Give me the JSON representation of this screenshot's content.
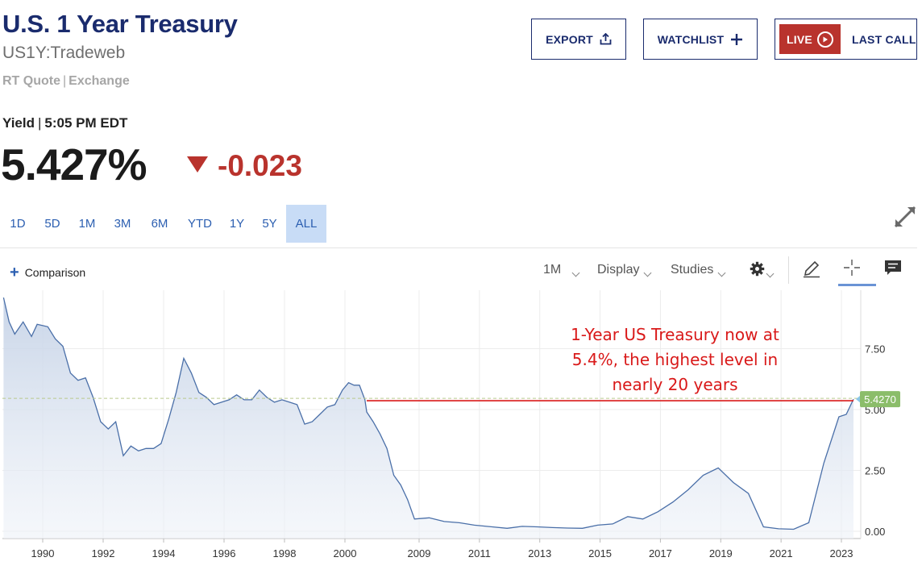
{
  "header": {
    "title": "U.S. 1 Year Treasury",
    "symbol": "US1Y:Tradeweb",
    "quote_type": "RT Quote",
    "quote_exchange": "Exchange"
  },
  "actions": {
    "export_label": "EXPORT",
    "watchlist_label": "WATCHLIST",
    "live_label": "LIVE",
    "last_call_label": "LAST CALL"
  },
  "quote": {
    "label": "Yield",
    "time": "5:05 PM EDT",
    "value": "5.427%",
    "change": "-0.023",
    "change_color": "#b9332d"
  },
  "ranges": [
    {
      "label": "1D",
      "active": false
    },
    {
      "label": "5D",
      "active": false
    },
    {
      "label": "1M",
      "active": false
    },
    {
      "label": "3M",
      "active": false
    },
    {
      "label": "6M",
      "active": false
    },
    {
      "label": "YTD",
      "active": false
    },
    {
      "label": "1Y",
      "active": false
    },
    {
      "label": "5Y",
      "active": false
    },
    {
      "label": "ALL",
      "active": true
    }
  ],
  "toolbar": {
    "comparison_label": "Comparison",
    "interval_label": "1M",
    "display_label": "Display",
    "studies_label": "Studies"
  },
  "annotation": {
    "line1": "1-Year US Treasury now at",
    "line2": "5.4%, the highest level in",
    "line3": "nearly 20 years"
  },
  "chart_data": {
    "type": "area",
    "series": [
      {
        "x": [
          "1988-11",
          "1989-01",
          "1989-03",
          "1989-06",
          "1989-09",
          "1989-11",
          "1990-03",
          "1990-06",
          "1990-09",
          "1990-12",
          "1991-03",
          "1991-06",
          "1991-09",
          "1991-12",
          "1992-03",
          "1992-06",
          "1992-09",
          "1992-12",
          "1993-03",
          "1993-06",
          "1993-09",
          "1993-12",
          "1994-03",
          "1994-06",
          "1994-09",
          "1994-12",
          "1995-03",
          "1995-06",
          "1995-09",
          "1995-12",
          "1996-03",
          "1996-06",
          "1996-09",
          "1996-12",
          "1997-03",
          "1997-06",
          "1997-09",
          "1997-12",
          "1998-03",
          "1998-06",
          "1998-09",
          "1998-12",
          "1999-03",
          "1999-06",
          "1999-09",
          "1999-12",
          "2000-03",
          "2000-06",
          "2000-09",
          "2000-12",
          "2007-02",
          "2007-05",
          "2007-08",
          "2007-11",
          "2008-02",
          "2008-05",
          "2008-08",
          "2008-11",
          "2009-05",
          "2009-11",
          "2010-05",
          "2010-11",
          "2011-06",
          "2011-12",
          "2012-06",
          "2012-12",
          "2013-06",
          "2013-12",
          "2014-06",
          "2014-12",
          "2015-06",
          "2015-12",
          "2016-06",
          "2016-12",
          "2017-06",
          "2017-12",
          "2018-06",
          "2018-12",
          "2019-06",
          "2019-12",
          "2020-06",
          "2020-12",
          "2021-06",
          "2021-12",
          "2022-06",
          "2022-12",
          "2023-03",
          "2023-06"
        ],
        "y": [
          9.6,
          8.6,
          8.1,
          8.6,
          8.0,
          8.5,
          8.4,
          7.9,
          7.6,
          6.5,
          6.2,
          6.3,
          5.5,
          4.5,
          4.2,
          4.5,
          3.1,
          3.5,
          3.3,
          3.4,
          3.4,
          3.6,
          4.6,
          5.7,
          7.1,
          6.5,
          5.7,
          5.5,
          5.2,
          5.3,
          5.4,
          5.6,
          5.4,
          5.4,
          5.8,
          5.5,
          5.3,
          5.4,
          5.3,
          5.2,
          4.4,
          4.5,
          4.8,
          5.1,
          5.2,
          5.8,
          6.1,
          6.0,
          6.0,
          5.4,
          4.9,
          4.5,
          4.0,
          3.4,
          2.3,
          1.9,
          1.3,
          0.5,
          0.55,
          0.4,
          0.35,
          0.25,
          0.18,
          0.12,
          0.2,
          0.18,
          0.15,
          0.13,
          0.12,
          0.25,
          0.3,
          0.6,
          0.5,
          0.8,
          1.2,
          1.7,
          2.3,
          2.6,
          2.0,
          1.55,
          0.18,
          0.1,
          0.08,
          0.35,
          2.8,
          4.7,
          4.8,
          5.427
        ]
      }
    ],
    "x_ticks": [
      "1990",
      "1992",
      "1994",
      "1996",
      "1998",
      "2000",
      "2009",
      "2011",
      "2013",
      "2015",
      "2017",
      "2019",
      "2021",
      "2023"
    ],
    "y_ticks": [
      "7.50",
      "5.00",
      "2.50",
      "0.00"
    ],
    "ylim": [
      -0.3,
      9.9
    ],
    "last_value_label": "5.4270",
    "last_value_color": "#8bbd6a",
    "line_color": "#4a6fa8",
    "highlight_line_color": "#d91919",
    "grid": true
  }
}
